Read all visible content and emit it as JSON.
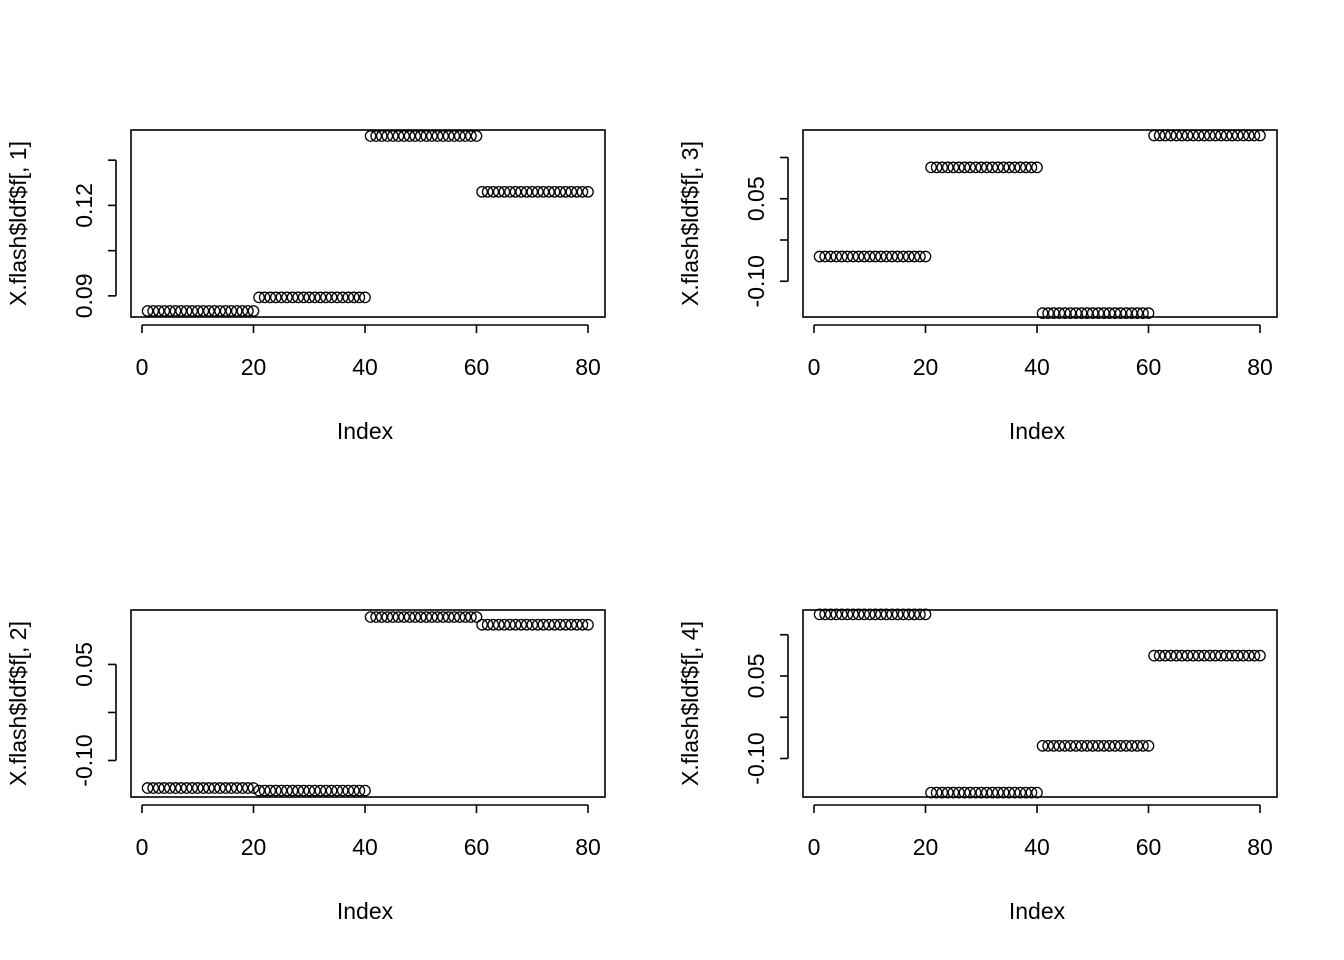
{
  "figure": {
    "title": "",
    "layout": "2x2 grid of scatter plots"
  },
  "chart_data": [
    {
      "type": "scatter",
      "title": "",
      "xlabel": "Index",
      "ylabel": "X.flash$ldf$f[, 1]",
      "xlim": [
        1,
        80
      ],
      "ylim": [
        0.083,
        0.145
      ],
      "xticks": [
        0,
        20,
        40,
        60,
        80
      ],
      "xtick_labels": [
        "0",
        "20",
        "40",
        "60",
        "80"
      ],
      "yticks": [
        0.09,
        0.105,
        0.12,
        0.135
      ],
      "ytick_labels": [
        "0.09",
        "",
        "0.12",
        ""
      ],
      "segments": [
        {
          "from": 1,
          "to": 20,
          "value": 0.085
        },
        {
          "from": 21,
          "to": 40,
          "value": 0.0895
        },
        {
          "from": 41,
          "to": 60,
          "value": 0.143
        },
        {
          "from": 61,
          "to": 80,
          "value": 0.1245
        }
      ]
    },
    {
      "type": "scatter",
      "title": "",
      "xlabel": "Index",
      "ylabel": "X.flash$ldf$f[, 3]",
      "xlim": [
        1,
        80
      ],
      "ylim": [
        -0.165,
        0.175
      ],
      "xticks": [
        0,
        20,
        40,
        60,
        80
      ],
      "xtick_labels": [
        "0",
        "20",
        "40",
        "60",
        "80"
      ],
      "yticks": [
        -0.1,
        -0.025,
        0.05,
        0.125
      ],
      "ytick_labels": [
        "-0.10",
        "",
        "0.05",
        ""
      ],
      "segments": [
        {
          "from": 1,
          "to": 20,
          "value": -0.055
        },
        {
          "from": 21,
          "to": 40,
          "value": 0.107
        },
        {
          "from": 41,
          "to": 60,
          "value": -0.158
        },
        {
          "from": 61,
          "to": 80,
          "value": 0.165
        }
      ]
    },
    {
      "type": "scatter",
      "title": "",
      "xlabel": "Index",
      "ylabel": "X.flash$ldf$f[, 2]",
      "xlim": [
        1,
        80
      ],
      "ylim": [
        -0.157,
        0.135
      ],
      "xticks": [
        0,
        20,
        40,
        60,
        80
      ],
      "xtick_labels": [
        "0",
        "20",
        "40",
        "60",
        "80"
      ],
      "yticks": [
        -0.1,
        -0.025,
        0.05
      ],
      "ytick_labels": [
        "-0.10",
        "",
        "0.05"
      ],
      "segments": [
        {
          "from": 1,
          "to": 20,
          "value": -0.143
        },
        {
          "from": 21,
          "to": 40,
          "value": -0.147
        },
        {
          "from": 41,
          "to": 60,
          "value": 0.124
        },
        {
          "from": 61,
          "to": 80,
          "value": 0.112
        }
      ]
    },
    {
      "type": "scatter",
      "title": "",
      "xlabel": "Index",
      "ylabel": "X.flash$ldf$f[, 4]",
      "xlim": [
        1,
        80
      ],
      "ylim": [
        -0.17,
        0.17
      ],
      "xticks": [
        0,
        20,
        40,
        60,
        80
      ],
      "xtick_labels": [
        "0",
        "20",
        "40",
        "60",
        "80"
      ],
      "yticks": [
        -0.1,
        -0.025,
        0.05,
        0.125
      ],
      "ytick_labels": [
        "-0.10",
        "",
        "0.05",
        ""
      ],
      "segments": [
        {
          "from": 1,
          "to": 20,
          "value": 0.162
        },
        {
          "from": 21,
          "to": 40,
          "value": -0.162
        },
        {
          "from": 41,
          "to": 60,
          "value": -0.077
        },
        {
          "from": 61,
          "to": 80,
          "value": 0.087
        }
      ]
    }
  ]
}
